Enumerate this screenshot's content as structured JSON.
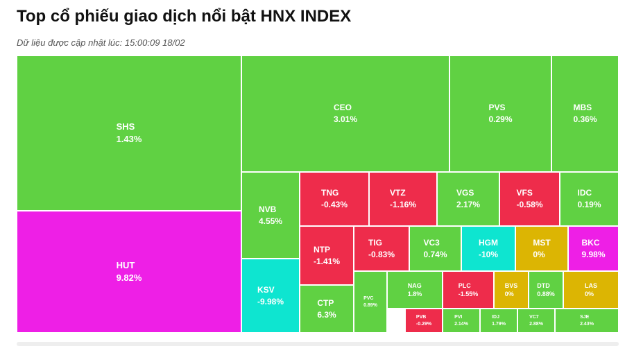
{
  "title": "Top cổ phiếu giao dịch nổi bật HNX INDEX",
  "update_note": "Dữ liệu được cập nhật lúc: 15:00:09 18/02",
  "colors": {
    "up": "#60d143",
    "down": "#ee2c4b",
    "ceiling": "#ee1fe6",
    "floor": "#0ee5d0",
    "reference": "#dcb503"
  },
  "chart_data": {
    "type": "treemap",
    "title": "Top cổ phiếu giao dịch nổi bật HNX INDEX",
    "items": [
      {
        "ticker": "SHS",
        "change": "1.43%",
        "status": "up"
      },
      {
        "ticker": "HUT",
        "change": "9.82%",
        "status": "ceiling"
      },
      {
        "ticker": "CEO",
        "change": "3.01%",
        "status": "up"
      },
      {
        "ticker": "PVS",
        "change": "0.29%",
        "status": "up"
      },
      {
        "ticker": "MBS",
        "change": "0.36%",
        "status": "up"
      },
      {
        "ticker": "NVB",
        "change": "4.55%",
        "status": "up"
      },
      {
        "ticker": "TNG",
        "change": "-0.43%",
        "status": "down"
      },
      {
        "ticker": "VTZ",
        "change": "-1.16%",
        "status": "down"
      },
      {
        "ticker": "VGS",
        "change": "2.17%",
        "status": "up"
      },
      {
        "ticker": "VFS",
        "change": "-0.58%",
        "status": "down"
      },
      {
        "ticker": "IDC",
        "change": "0.19%",
        "status": "up"
      },
      {
        "ticker": "NTP",
        "change": "-1.41%",
        "status": "down"
      },
      {
        "ticker": "TIG",
        "change": "-0.83%",
        "status": "down"
      },
      {
        "ticker": "VC3",
        "change": "0.74%",
        "status": "up"
      },
      {
        "ticker": "HGM",
        "change": "-10%",
        "status": "floor"
      },
      {
        "ticker": "MST",
        "change": "0%",
        "status": "reference"
      },
      {
        "ticker": "BKC",
        "change": "9.98%",
        "status": "ceiling"
      },
      {
        "ticker": "KSV",
        "change": "-9.98%",
        "status": "floor"
      },
      {
        "ticker": "CTP",
        "change": "6.3%",
        "status": "up"
      },
      {
        "ticker": "PVC",
        "change": "0.89%",
        "status": "up"
      },
      {
        "ticker": "NAG",
        "change": "1.8%",
        "status": "up"
      },
      {
        "ticker": "PLC",
        "change": "-1.55%",
        "status": "down"
      },
      {
        "ticker": "BVS",
        "change": "0%",
        "status": "reference"
      },
      {
        "ticker": "DTD",
        "change": "0.88%",
        "status": "up"
      },
      {
        "ticker": "LAS",
        "change": "0%",
        "status": "reference"
      },
      {
        "ticker": "PVB",
        "change": "-0.29%",
        "status": "down"
      },
      {
        "ticker": "PVI",
        "change": "2.14%",
        "status": "up"
      },
      {
        "ticker": "IDJ",
        "change": "1.79%",
        "status": "up"
      },
      {
        "ticker": "VC7",
        "change": "2.88%",
        "status": "up"
      },
      {
        "ticker": "SJE",
        "change": "2.43%",
        "status": "up"
      }
    ]
  }
}
